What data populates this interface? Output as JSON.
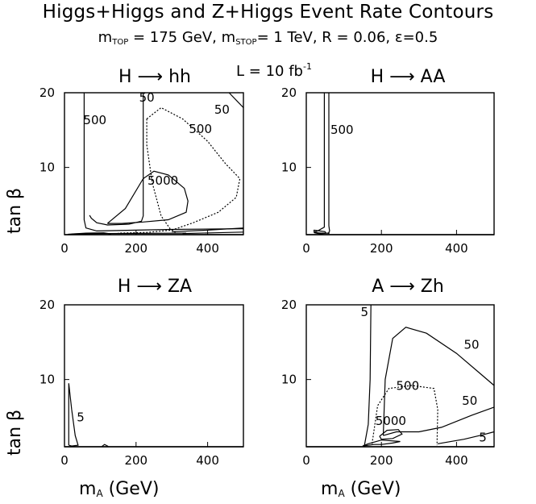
{
  "title": "Higgs+Higgs and Z+Higgs Event Rate Contours",
  "subtitle": {
    "m_top_label": "m",
    "m_top_sub": "TOP",
    "m_top_value": "= 175 GeV,",
    "m_stop_label": "m",
    "m_stop_sub": "STOP",
    "m_stop_value": "= 1 TeV, R = 0.06, ε=0.5"
  },
  "luminosity": {
    "text": "L = 10 fb",
    "sup": "-1"
  },
  "axis_labels": {
    "y": "tan β",
    "x_main": "m",
    "x_sub": "A",
    "x_unit": "(GeV)"
  },
  "chart_data": [
    {
      "type": "contour",
      "title": "H ⟶ hh",
      "xlim": [
        0,
        500
      ],
      "ylim": [
        1,
        20
      ],
      "xticks": [
        0,
        200,
        400
      ],
      "yticks": [
        10,
        20
      ],
      "contours": [
        {
          "label": "500",
          "style": "solid",
          "points": [
            [
              55,
              20
            ],
            [
              55,
              3
            ],
            [
              60,
              1.9
            ],
            [
              90,
              1.5
            ],
            [
              200,
              1.6
            ],
            [
              300,
              1.7
            ],
            [
              500,
              1.8
            ]
          ]
        },
        {
          "label": "500",
          "style": "solid",
          "points": [
            [
              220,
              20
            ],
            [
              220,
              3.5
            ],
            [
              215,
              2.8
            ],
            [
              180,
              2.4
            ],
            [
              120,
              2.3
            ],
            [
              90,
              2.6
            ],
            [
              75,
              3.2
            ],
            [
              70,
              3.6
            ]
          ]
        },
        {
          "label": "5000",
          "style": "solid",
          "points": [
            [
              120,
              2.5
            ],
            [
              170,
              4.5
            ],
            [
              220,
              8.5
            ],
            [
              250,
              9.5
            ],
            [
              290,
              9.0
            ],
            [
              335,
              7.2
            ],
            [
              345,
              5.5
            ],
            [
              340,
              4.0
            ],
            [
              290,
              3.0
            ],
            [
              220,
              2.7
            ],
            [
              160,
              2.5
            ],
            [
              120,
              2.5
            ]
          ]
        },
        {
          "label": "50",
          "style": "dotted",
          "points": [
            [
              230,
              16.5
            ],
            [
              230,
              13
            ],
            [
              245,
              8
            ],
            [
              270,
              3.5
            ],
            [
              295,
              1.8
            ],
            [
              310,
              1.3
            ]
          ]
        },
        {
          "label": "500",
          "style": "dotted",
          "points": [
            [
              230,
              16.5
            ],
            [
              270,
              18
            ],
            [
              330,
              16.5
            ],
            [
              400,
              13.5
            ],
            [
              450,
              10.5
            ],
            [
              490,
              8.5
            ],
            [
              480,
              6
            ],
            [
              430,
              4
            ],
            [
              360,
              2.6
            ],
            [
              300,
              1.6
            ],
            [
              230,
              1.3
            ],
            [
              150,
              1.2
            ]
          ]
        },
        {
          "label": "",
          "style": "solid",
          "points": [
            [
              300,
              1.4
            ],
            [
              400,
              1.6
            ],
            [
              500,
              1.9
            ]
          ]
        },
        {
          "label": "",
          "style": "solid",
          "points": [
            [
              330,
              1.15
            ],
            [
              420,
              1.25
            ],
            [
              500,
              1.35
            ]
          ]
        },
        {
          "label": "50",
          "style": "solid",
          "points": [
            [
              460,
              20
            ],
            [
              500,
              18
            ]
          ]
        },
        {
          "label": "",
          "style": "solid",
          "points": [
            [
              10,
              1.05
            ],
            [
              60,
              1.2
            ],
            [
              110,
              1.25
            ],
            [
              130,
              1.1
            ]
          ]
        },
        {
          "label": "",
          "style": "solid",
          "points": [
            [
              20,
              1.1
            ],
            [
              90,
              1.15
            ],
            [
              340,
              1.2
            ]
          ]
        }
      ],
      "contour_labels": [
        {
          "text": "50",
          "x": 230,
          "y": 18.8
        },
        {
          "text": "50",
          "x": 440,
          "y": 17.2
        },
        {
          "text": "500",
          "x": 85,
          "y": 15.8
        },
        {
          "text": "500",
          "x": 380,
          "y": 14.6
        },
        {
          "text": "5000",
          "x": 275,
          "y": 7.7
        }
      ]
    },
    {
      "type": "contour",
      "title": "H ⟶ AA",
      "xlim": [
        0,
        500
      ],
      "ylim": [
        1,
        20
      ],
      "xticks": [
        0,
        200,
        400
      ],
      "yticks": [
        10,
        20
      ],
      "contours": [
        {
          "label": "500",
          "style": "solid",
          "points": [
            [
              60,
              20
            ],
            [
              60,
              2.2
            ],
            [
              62,
              1.5
            ],
            [
              58,
              1.1
            ]
          ]
        },
        {
          "label": "500",
          "style": "solid",
          "points": [
            [
              48,
              20
            ],
            [
              48,
              2.0
            ],
            [
              30,
              1.5
            ],
            [
              20,
              1.3
            ],
            [
              40,
              1.2
            ],
            [
              62,
              1.2
            ]
          ]
        },
        {
          "label": "",
          "style": "solid",
          "points": [
            [
              20,
              1.6
            ],
            [
              35,
              1.5
            ],
            [
              50,
              1.4
            ],
            [
              52,
              1.2
            ],
            [
              38,
              1.1
            ],
            [
              22,
              1.25
            ],
            [
              20,
              1.6
            ]
          ]
        }
      ],
      "contour_labels": [
        {
          "text": "500",
          "x": 95,
          "y": 14.5
        }
      ]
    },
    {
      "type": "contour",
      "title": "H ⟶ ZA",
      "xlim": [
        0,
        500
      ],
      "ylim": [
        1,
        20
      ],
      "xticks": [
        0,
        200,
        400
      ],
      "yticks": [
        10,
        20
      ],
      "contours": [
        {
          "label": "5",
          "style": "solid",
          "points": [
            [
              12,
              1.2
            ],
            [
              12,
              9.5
            ],
            [
              20,
              6
            ],
            [
              30,
              2.5
            ],
            [
              38,
              1.2
            ],
            [
              20,
              1.1
            ],
            [
              12,
              1.2
            ]
          ]
        },
        {
          "label": "",
          "style": "solid",
          "points": [
            [
              105,
              1.05
            ],
            [
              112,
              1.3
            ],
            [
              122,
              1.05
            ]
          ]
        }
      ],
      "contour_labels": [
        {
          "text": "5",
          "x": 45,
          "y": 4.4
        }
      ]
    },
    {
      "type": "contour",
      "title": "A ⟶ Zh",
      "xlim": [
        0,
        500
      ],
      "ylim": [
        1,
        20
      ],
      "xticks": [
        0,
        200,
        400
      ],
      "yticks": [
        10,
        20
      ],
      "contours": [
        {
          "label": "5",
          "style": "solid",
          "points": [
            [
              172,
              20
            ],
            [
              170,
              10
            ],
            [
              165,
              4
            ],
            [
              155,
              1.2
            ]
          ]
        },
        {
          "label": "50",
          "style": "solid",
          "points": [
            [
              205,
              2.5
            ],
            [
              210,
              10
            ],
            [
              230,
              15.5
            ],
            [
              265,
              17
            ],
            [
              320,
              16.2
            ],
            [
              400,
              13.5
            ],
            [
              470,
              10.5
            ],
            [
              500,
              9.2
            ]
          ]
        },
        {
          "label": "50",
          "style": "solid",
          "points": [
            [
              205,
              2.5
            ],
            [
              240,
              3.0
            ],
            [
              300,
              3.0
            ],
            [
              360,
              3.6
            ],
            [
              440,
              5.2
            ],
            [
              500,
              6.3
            ]
          ]
        },
        {
          "label": "500",
          "style": "dotted",
          "points": [
            [
              175,
              1.4
            ],
            [
              190,
              6.5
            ],
            [
              220,
              8.8
            ],
            [
              280,
              9.2
            ],
            [
              340,
              8.8
            ],
            [
              350,
              6
            ],
            [
              348,
              1.2
            ]
          ]
        },
        {
          "label": "5000",
          "style": "solid",
          "points": [
            [
              195,
              2.4
            ],
            [
              215,
              3.2
            ],
            [
              245,
              3.3
            ],
            [
              255,
              2.7
            ],
            [
              230,
              2.1
            ],
            [
              200,
              2.0
            ],
            [
              195,
              2.4
            ]
          ]
        },
        {
          "label": "5",
          "style": "solid",
          "points": [
            [
              350,
              1.4
            ],
            [
              420,
              2.0
            ],
            [
              470,
              2.6
            ],
            [
              500,
              3.0
            ]
          ]
        },
        {
          "label": "",
          "style": "solid",
          "points": [
            [
              150,
              1.1
            ],
            [
              180,
              1.3
            ],
            [
              200,
              1.3
            ],
            [
              230,
              1.5
            ],
            [
              250,
              1.7
            ],
            [
              200,
              1.9
            ],
            [
              165,
              1.4
            ],
            [
              150,
              1.1
            ]
          ]
        }
      ],
      "contour_labels": [
        {
          "text": "5",
          "x": 155,
          "y": 18.5
        },
        {
          "text": "50",
          "x": 440,
          "y": 14.1
        },
        {
          "text": "500",
          "x": 270,
          "y": 8.6
        },
        {
          "text": "50",
          "x": 435,
          "y": 6.6
        },
        {
          "text": "5000",
          "x": 225,
          "y": 3.9
        },
        {
          "text": "5",
          "x": 470,
          "y": 1.7
        }
      ]
    }
  ]
}
